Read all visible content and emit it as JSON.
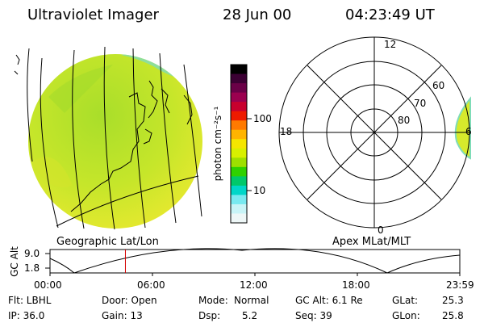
{
  "header": {
    "instrument": "Ultraviolet Imager",
    "date": "28 Jun 00",
    "time": "04:23:49 UT"
  },
  "colorbar": {
    "unit_label": "photon cm⁻²s⁻¹",
    "tick_100": "100",
    "tick_10": "10",
    "colors": [
      "#000000",
      "#3b0033",
      "#6a0047",
      "#9b004f",
      "#c8002e",
      "#ee1b00",
      "#ff7a00",
      "#ffb400",
      "#f5e600",
      "#d8f000",
      "#9ee000",
      "#2fd100",
      "#00c86a",
      "#00d6c8",
      "#78e9f0",
      "#c8f4f7",
      "#eef7f7"
    ]
  },
  "panels": {
    "left_caption": "Geographic Lat/Lon",
    "right_caption": "Apex MLat/MLT"
  },
  "polar": {
    "mlt_top": "12",
    "mlt_left": "18",
    "mlt_right": "6",
    "mlt_bottom": "0",
    "lat_60": "60",
    "lat_70": "70",
    "lat_80": "80"
  },
  "altitude_plot": {
    "ylabel": "GC Alt",
    "ytick_high": "9.0",
    "ytick_low": "1.8",
    "xticks": [
      "00:00",
      "06:00",
      "12:00",
      "18:00",
      "23:59"
    ],
    "current_time_fraction": 0.184
  },
  "info": {
    "flt": "Flt: LBHL",
    "ip": "IP: 36.0",
    "door": "Door: Open",
    "gain": "Gain: 13",
    "mode_label": "Mode:",
    "mode_value": "Normal",
    "dsp_label": "Dsp:",
    "dsp_value": "5.2",
    "gcalt": "GC Alt: 6.1 Re",
    "seq": "Seq: 39",
    "glat_label": "GLat:",
    "glat_value": "25.3",
    "glon_label": "GLon:",
    "glon_value": "25.8"
  }
}
